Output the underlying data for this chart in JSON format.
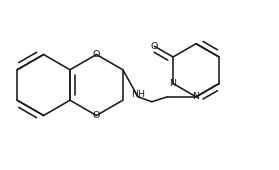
{
  "bg": "#ffffff",
  "lc": "#1a1a1a",
  "lw": 1.15,
  "fs": 6.8,
  "figsize": [
    2.79,
    1.7
  ],
  "dpi": 100,
  "xlim": [
    0,
    279
  ],
  "ylim": [
    0,
    170
  ]
}
